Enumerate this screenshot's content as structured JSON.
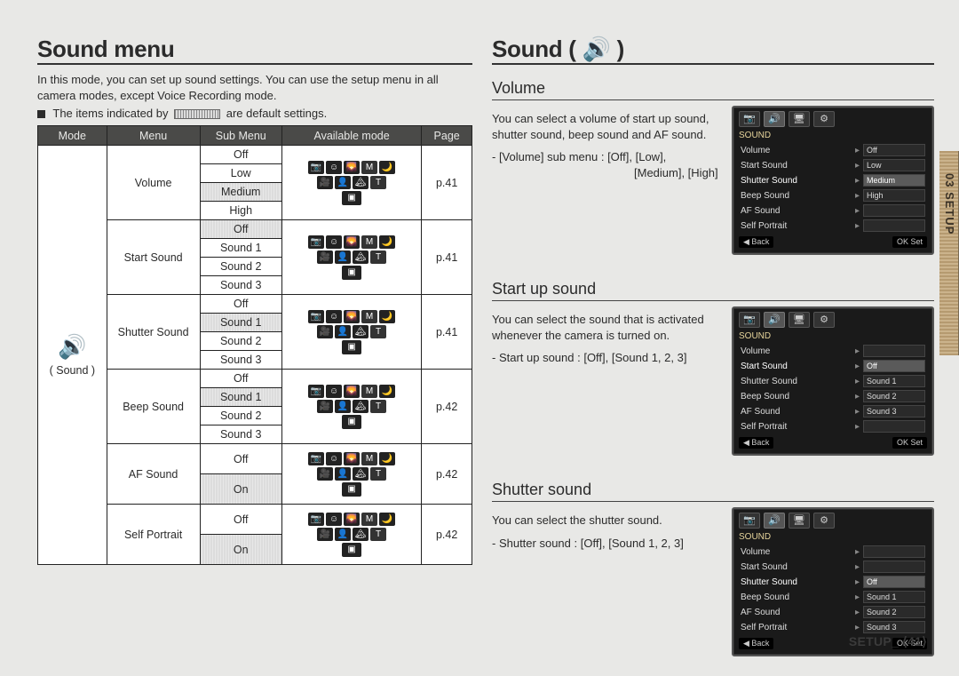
{
  "left": {
    "title": "Sound menu",
    "intro": "In this mode, you can set up sound settings. You can use the setup menu in all camera modes, except Voice Recording mode.",
    "note_prefix": "The items indicated by",
    "note_suffix": "are default settings.",
    "headers": {
      "mode": "Mode",
      "menu": "Menu",
      "sub": "Sub Menu",
      "avail": "Available mode",
      "page": "Page"
    },
    "mode_label": "( Sound )",
    "menus": {
      "volume": {
        "label": "Volume",
        "sub": [
          "Off",
          "Low",
          "Medium",
          "High"
        ],
        "default_index": 2,
        "page": "p.41"
      },
      "start": {
        "label": "Start Sound",
        "sub": [
          "Off",
          "Sound 1",
          "Sound 2",
          "Sound 3"
        ],
        "default_index": 0,
        "page": "p.41"
      },
      "shutter": {
        "label": "Shutter Sound",
        "sub": [
          "Off",
          "Sound 1",
          "Sound 2",
          "Sound 3"
        ],
        "default_index": 1,
        "page": "p.41"
      },
      "beep": {
        "label": "Beep Sound",
        "sub": [
          "Off",
          "Sound 1",
          "Sound 2",
          "Sound 3"
        ],
        "default_index": 1,
        "page": "p.42"
      },
      "af": {
        "label": "AF Sound",
        "sub": [
          "Off",
          "On"
        ],
        "default_index": 1,
        "page": "p.42"
      },
      "self": {
        "label": "Self Portrait",
        "sub": [
          "Off",
          "On"
        ],
        "default_index": 1,
        "page": "p.42"
      }
    },
    "mode_icons_rows": [
      [
        "📷",
        "☺",
        "🌄",
        "M",
        "🌙"
      ],
      [
        "🎥",
        "👤",
        "🏔",
        "T"
      ],
      [
        "⚡",
        "🎞",
        "📊",
        "🎨"
      ]
    ]
  },
  "right": {
    "title": "Sound ( 🔊 )",
    "volume": {
      "heading": "Volume",
      "body1": "You can select a volume of start up sound, shutter sound, beep sound and AF sound.",
      "body2_pre": "- [Volume] sub menu : [Off], [Low],",
      "body2_indent": "[Medium], [High]",
      "cam": {
        "header": "SOUND",
        "rows": [
          {
            "k": "Volume",
            "v": "Off"
          },
          {
            "k": "Start Sound",
            "v": "Low"
          },
          {
            "k": "Shutter Sound",
            "v": "Medium",
            "hi": true
          },
          {
            "k": "Beep Sound",
            "v": "High"
          },
          {
            "k": "AF Sound",
            "v": ""
          },
          {
            "k": "Self Portrait",
            "v": ""
          }
        ],
        "back": "◀  Back",
        "ok": "OK  Set"
      }
    },
    "startup": {
      "heading": "Start up sound",
      "body1": "You can select the sound that is activated whenever the camera is turned on.",
      "body2": "- Start up sound : [Off], [Sound 1, 2, 3]",
      "cam": {
        "header": "SOUND",
        "rows": [
          {
            "k": "Volume",
            "v": ""
          },
          {
            "k": "Start Sound",
            "v": "Off",
            "hi": true
          },
          {
            "k": "Shutter Sound",
            "v": "Sound 1"
          },
          {
            "k": "Beep Sound",
            "v": "Sound 2"
          },
          {
            "k": "AF Sound",
            "v": "Sound 3"
          },
          {
            "k": "Self Portrait",
            "v": ""
          }
        ],
        "back": "◀  Back",
        "ok": "OK  Set"
      }
    },
    "shutter": {
      "heading": "Shutter sound",
      "body1": "You can select the shutter sound.",
      "body2": "- Shutter sound : [Off], [Sound 1, 2, 3]",
      "cam": {
        "header": "SOUND",
        "rows": [
          {
            "k": "Volume",
            "v": ""
          },
          {
            "k": "Start Sound",
            "v": ""
          },
          {
            "k": "Shutter Sound",
            "v": "Off",
            "hi": true
          },
          {
            "k": "Beep Sound",
            "v": "Sound 1"
          },
          {
            "k": "AF Sound",
            "v": "Sound 2"
          },
          {
            "k": "Self Portrait",
            "v": "Sound 3"
          }
        ],
        "back": "◀  Back",
        "ok": "OK  Set"
      }
    }
  },
  "sidebar_label": "03 SETUP",
  "footer": "SETUP_ ⟨41⟩",
  "tab_icons": [
    "📷",
    "🔊",
    "🖥",
    "⚙"
  ]
}
